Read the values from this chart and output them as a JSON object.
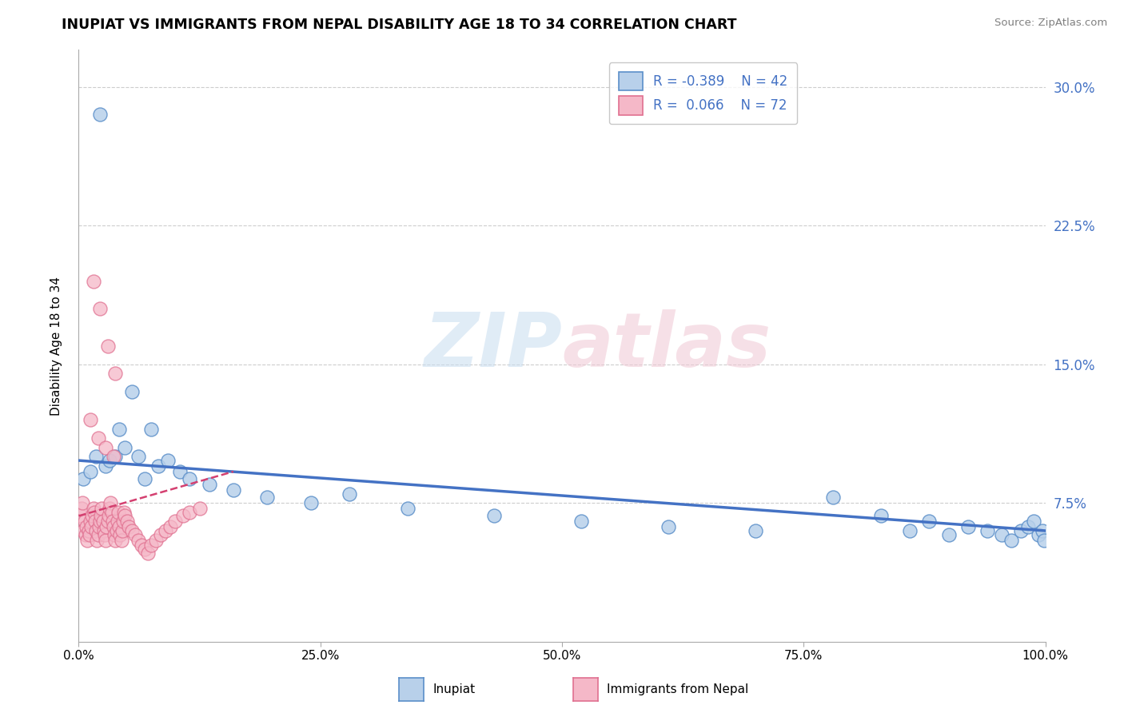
{
  "title": "INUPIAT VS IMMIGRANTS FROM NEPAL DISABILITY AGE 18 TO 34 CORRELATION CHART",
  "source": "Source: ZipAtlas.com",
  "ylabel": "Disability Age 18 to 34",
  "xlim": [
    0.0,
    1.0
  ],
  "ylim": [
    0.0,
    0.32
  ],
  "xticks": [
    0.0,
    0.25,
    0.5,
    0.75,
    1.0
  ],
  "xticklabels": [
    "0.0%",
    "25.0%",
    "50.0%",
    "75.0%",
    "100.0%"
  ],
  "yticks": [
    0.075,
    0.15,
    0.225,
    0.3
  ],
  "yticklabels": [
    "7.5%",
    "15.0%",
    "22.5%",
    "30.0%"
  ],
  "legend_r1": "R = -0.389",
  "legend_n1": "N = 42",
  "legend_r2": "R =  0.066",
  "legend_n2": "N = 72",
  "inupiat_fill": "#b8d0ea",
  "inupiat_edge": "#5b8fc9",
  "nepal_fill": "#f5b8c8",
  "nepal_edge": "#e07090",
  "inupiat_line_color": "#4472c4",
  "nepal_line_color": "#d44070",
  "watermark_color": "#d8e8f0",
  "watermark_color2": "#f0d0dc",
  "background_color": "#ffffff",
  "inupiat_x": [
    0.005,
    0.012,
    0.018,
    0.022,
    0.028,
    0.032,
    0.038,
    0.042,
    0.048,
    0.055,
    0.062,
    0.068,
    0.075,
    0.082,
    0.092,
    0.105,
    0.115,
    0.135,
    0.16,
    0.195,
    0.24,
    0.28,
    0.34,
    0.43,
    0.52,
    0.61,
    0.7,
    0.78,
    0.83,
    0.86,
    0.88,
    0.9,
    0.92,
    0.94,
    0.955,
    0.965,
    0.975,
    0.982,
    0.988,
    0.993,
    0.997,
    0.999
  ],
  "inupiat_y": [
    0.088,
    0.092,
    0.1,
    0.285,
    0.095,
    0.098,
    0.1,
    0.115,
    0.105,
    0.135,
    0.1,
    0.088,
    0.115,
    0.095,
    0.098,
    0.092,
    0.088,
    0.085,
    0.082,
    0.078,
    0.075,
    0.08,
    0.072,
    0.068,
    0.065,
    0.062,
    0.06,
    0.078,
    0.068,
    0.06,
    0.065,
    0.058,
    0.062,
    0.06,
    0.058,
    0.055,
    0.06,
    0.062,
    0.065,
    0.058,
    0.06,
    0.055
  ],
  "nepal_x": [
    0.002,
    0.003,
    0.004,
    0.005,
    0.006,
    0.007,
    0.008,
    0.009,
    0.01,
    0.011,
    0.012,
    0.013,
    0.014,
    0.015,
    0.016,
    0.017,
    0.018,
    0.019,
    0.02,
    0.021,
    0.022,
    0.023,
    0.024,
    0.025,
    0.026,
    0.027,
    0.028,
    0.029,
    0.03,
    0.031,
    0.032,
    0.033,
    0.034,
    0.035,
    0.036,
    0.037,
    0.038,
    0.039,
    0.04,
    0.041,
    0.042,
    0.043,
    0.044,
    0.045,
    0.046,
    0.047,
    0.048,
    0.05,
    0.052,
    0.055,
    0.058,
    0.062,
    0.065,
    0.068,
    0.072,
    0.075,
    0.08,
    0.085,
    0.09,
    0.095,
    0.1,
    0.108,
    0.115,
    0.125,
    0.015,
    0.022,
    0.03,
    0.038,
    0.012,
    0.02,
    0.028,
    0.036
  ],
  "nepal_y": [
    0.068,
    0.072,
    0.075,
    0.06,
    0.065,
    0.058,
    0.062,
    0.055,
    0.06,
    0.058,
    0.065,
    0.062,
    0.068,
    0.072,
    0.07,
    0.065,
    0.06,
    0.055,
    0.058,
    0.062,
    0.065,
    0.068,
    0.072,
    0.065,
    0.06,
    0.058,
    0.055,
    0.062,
    0.065,
    0.068,
    0.072,
    0.075,
    0.07,
    0.065,
    0.062,
    0.058,
    0.055,
    0.06,
    0.065,
    0.07,
    0.062,
    0.058,
    0.055,
    0.06,
    0.065,
    0.07,
    0.068,
    0.065,
    0.062,
    0.06,
    0.058,
    0.055,
    0.052,
    0.05,
    0.048,
    0.052,
    0.055,
    0.058,
    0.06,
    0.062,
    0.065,
    0.068,
    0.07,
    0.072,
    0.195,
    0.18,
    0.16,
    0.145,
    0.12,
    0.11,
    0.105,
    0.1
  ]
}
